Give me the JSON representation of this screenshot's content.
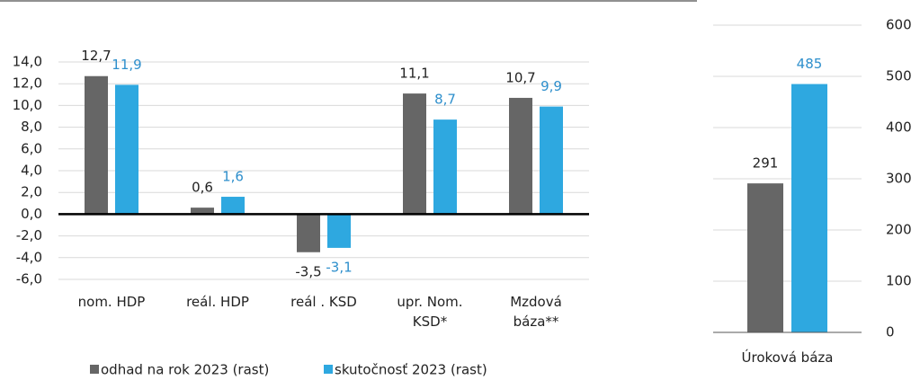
{
  "chart_data": [
    {
      "type": "bar",
      "categories": [
        "nom. HDP",
        "reál. HDP",
        "reál . KSD",
        "upr. Nom.\nKSD*",
        "Mzdová\nbáza**"
      ],
      "series": [
        {
          "name": "odhad na rok 2023 (rast)",
          "color": "#666666",
          "label_color": "#222222",
          "values": [
            12.7,
            0.6,
            -3.5,
            11.1,
            10.7
          ],
          "value_labels": [
            "12,7",
            "0,6",
            "-3,5",
            "11,1",
            "10,7"
          ]
        },
        {
          "name": "skutočnosť 2023 (rast)",
          "color": "#2ea8e0",
          "label_color": "#2e8fcc",
          "values": [
            11.9,
            1.6,
            -3.1,
            8.7,
            9.9
          ],
          "value_labels": [
            "11,9",
            "1,6",
            "-3,1",
            "8,7",
            "9,9"
          ]
        }
      ],
      "ylim": [
        -6,
        14
      ],
      "yticks": [
        {
          "value": -6,
          "label": "-6,0"
        },
        {
          "value": -4,
          "label": "-4,0"
        },
        {
          "value": -2,
          "label": "-2,0"
        },
        {
          "value": 0,
          "label": "0,0"
        },
        {
          "value": 2,
          "label": "2,0"
        },
        {
          "value": 4,
          "label": "4,0"
        },
        {
          "value": 6,
          "label": "6,0"
        },
        {
          "value": 8,
          "label": "8,0"
        },
        {
          "value": 10,
          "label": "10,0"
        },
        {
          "value": 12,
          "label": "12,0"
        },
        {
          "value": 14,
          "label": "14,0"
        }
      ],
      "grid": true,
      "legend": "bottom"
    },
    {
      "type": "bar",
      "categories": [
        "Úroková báza"
      ],
      "series": [
        {
          "color": "#666666",
          "label_color": "#222222",
          "values": [
            291
          ],
          "axis": "y2"
        },
        {
          "color": "#2ea8e0",
          "label_color": "#2e8fcc",
          "values": [
            485
          ],
          "axis": "y2"
        }
      ],
      "y2lim": [
        0,
        600
      ],
      "y2ticks": [
        0,
        100,
        200,
        300,
        400,
        500,
        600
      ],
      "grid": true
    }
  ]
}
